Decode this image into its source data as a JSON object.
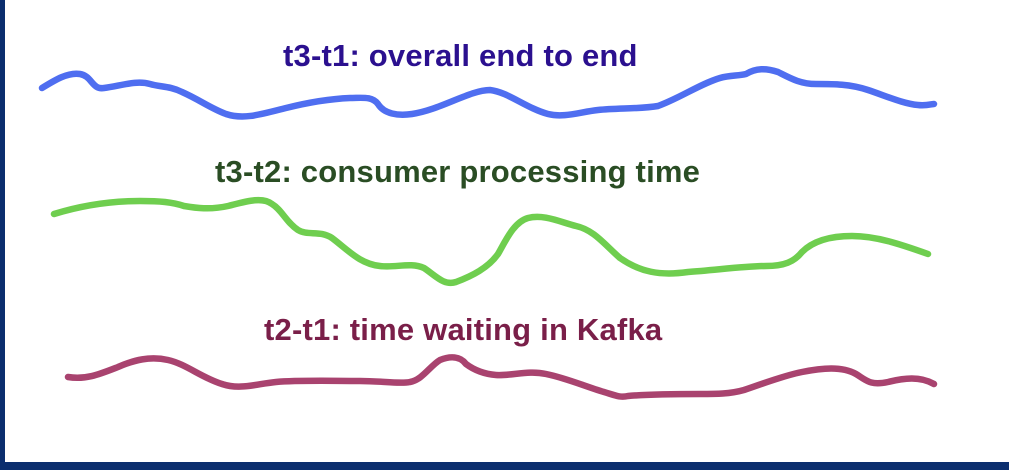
{
  "labels": {
    "overall": "t3-t1: overall end to end",
    "consumer": "t3-t2: consumer processing time",
    "kafka": "t2-t1: time waiting in Kafka"
  },
  "colors": {
    "frame": "#0b2e6e",
    "background": "#ffffff",
    "overall_text": "#2b108f",
    "overall_line": "#4f6ef0",
    "consumer_text": "#2a4d24",
    "consumer_line": "#6fce4f",
    "kafka_text": "#7a1f49",
    "kafka_line": "#a9436f"
  }
}
